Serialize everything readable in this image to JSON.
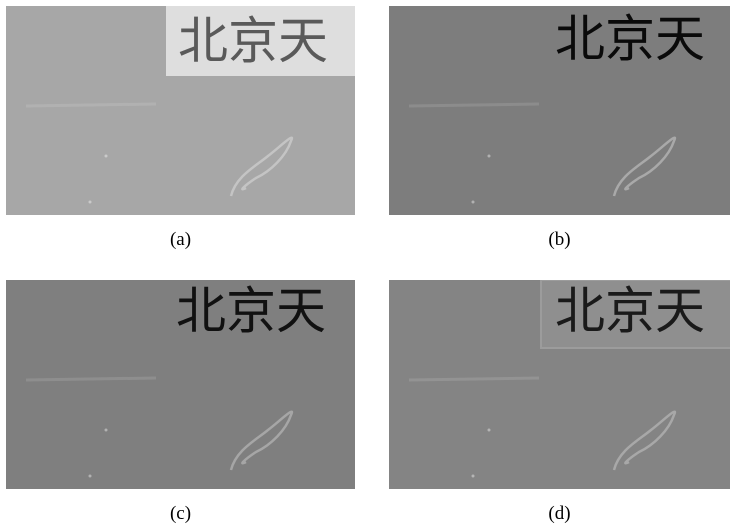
{
  "panels": [
    {
      "caption": "(a)",
      "sign": "北京天"
    },
    {
      "caption": "(b)",
      "sign": "北京天"
    },
    {
      "caption": "(c)",
      "sign": "北京天"
    },
    {
      "caption": "(d)",
      "sign": "北京天"
    }
  ]
}
